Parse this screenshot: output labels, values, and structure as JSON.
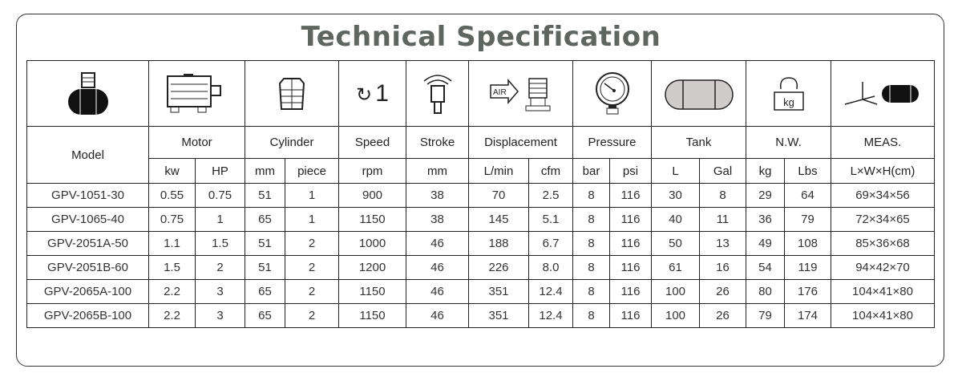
{
  "title": "Technical Specification",
  "icons": [
    "compressor-pump-icon",
    "motor-icon",
    "cylinder-icon",
    "speed-rotation-icon",
    "stroke-piston-icon",
    "air-displacement-icon",
    "pressure-gauge-icon",
    "tank-icon",
    "weight-kg-icon",
    "dimensions-icon"
  ],
  "speed_icon_text": "1",
  "air_label": "AIR",
  "weight_label": "kg",
  "headers": {
    "model": "Model",
    "groups": [
      "Motor",
      "Cylinder",
      "Speed",
      "Stroke",
      "Displacement",
      "Pressure",
      "Tank",
      "N.W.",
      "MEAS."
    ],
    "units": [
      "kw",
      "HP",
      "mm",
      "piece",
      "rpm",
      "mm",
      "L/min",
      "cfm",
      "bar",
      "psi",
      "L",
      "Gal",
      "kg",
      "Lbs",
      "L×W×H(cm)"
    ]
  },
  "rows": [
    [
      "GPV-1051-30",
      "0.55",
      "0.75",
      "51",
      "1",
      "900",
      "38",
      "70",
      "2.5",
      "8",
      "116",
      "30",
      "8",
      "29",
      "64",
      "69×34×56"
    ],
    [
      "GPV-1065-40",
      "0.75",
      "1",
      "65",
      "1",
      "1150",
      "38",
      "145",
      "5.1",
      "8",
      "116",
      "40",
      "11",
      "36",
      "79",
      "72×34×65"
    ],
    [
      "GPV-2051A-50",
      "1.1",
      "1.5",
      "51",
      "2",
      "1000",
      "46",
      "188",
      "6.7",
      "8",
      "116",
      "50",
      "13",
      "49",
      "108",
      "85×36×68"
    ],
    [
      "GPV-2051B-60",
      "1.5",
      "2",
      "51",
      "2",
      "1200",
      "46",
      "226",
      "8.0",
      "8",
      "116",
      "61",
      "16",
      "54",
      "119",
      "94×42×70"
    ],
    [
      "GPV-2065A-100",
      "2.2",
      "3",
      "65",
      "2",
      "1150",
      "46",
      "351",
      "12.4",
      "8",
      "116",
      "100",
      "26",
      "80",
      "176",
      "104×41×80"
    ],
    [
      "GPV-2065B-100",
      "2.2",
      "3",
      "65",
      "2",
      "1150",
      "46",
      "351",
      "12.4",
      "8",
      "116",
      "100",
      "26",
      "79",
      "174",
      "104×41×80"
    ]
  ]
}
